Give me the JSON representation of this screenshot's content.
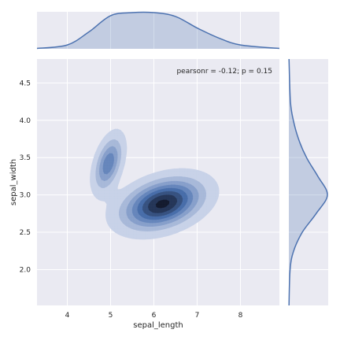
{
  "chart_data": {
    "type": "kde-jointplot",
    "x_variable": "sepal_length",
    "y_variable": "sepal_width",
    "xlabel": "sepal_length",
    "ylabel": "sepal_width",
    "annotation": "pearsonr = -0.12; p = 0.15",
    "xlim": [
      3.3,
      8.9
    ],
    "ylim": [
      1.52,
      4.82
    ],
    "xticks": [
      4,
      5,
      6,
      7,
      8
    ],
    "yticks": [
      2.0,
      2.5,
      3.0,
      3.5,
      4.0,
      4.5
    ],
    "ytick_labels": [
      "2.0",
      "2.5",
      "3.0",
      "3.5",
      "4.0",
      "4.5"
    ],
    "legend": "none",
    "grid": true,
    "joint_modes": [
      {
        "x": 4.95,
        "y": 3.42,
        "sx": 0.2,
        "sy": 0.22,
        "rho": 0.45,
        "weight": 0.55
      },
      {
        "x": 6.2,
        "y": 2.88,
        "sx": 0.55,
        "sy": 0.2,
        "rho": 0.35,
        "weight": 1.0
      }
    ],
    "contour_levels": 8,
    "marginal_x": {
      "x": [
        4.0,
        4.5,
        5.0,
        5.5,
        6.0,
        6.5,
        7.0,
        7.5,
        8.0
      ],
      "density": [
        0.05,
        0.22,
        0.43,
        0.47,
        0.47,
        0.42,
        0.27,
        0.14,
        0.05
      ]
    },
    "marginal_y": {
      "y": [
        2.0,
        2.25,
        2.5,
        2.75,
        3.0,
        3.25,
        3.5,
        3.75,
        4.0,
        4.25
      ],
      "density": [
        0.04,
        0.15,
        0.42,
        0.85,
        1.2,
        0.9,
        0.55,
        0.3,
        0.14,
        0.05
      ]
    },
    "colors": {
      "panel_background": "#eaeaf2",
      "line": "#4c72b0",
      "fill": "#4c72b0",
      "grid": "#ffffff",
      "text": "#262626"
    }
  }
}
